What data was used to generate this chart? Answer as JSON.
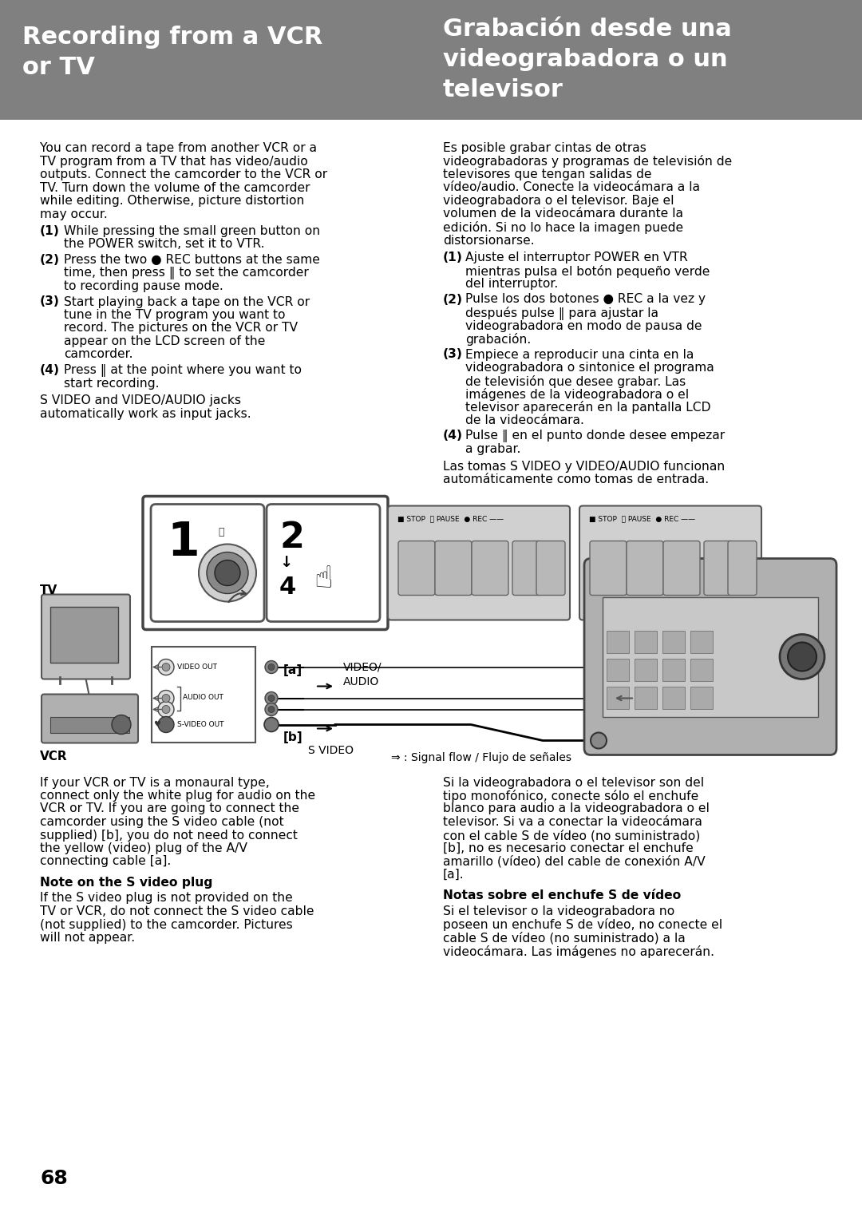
{
  "page_bg": "#ffffff",
  "header_bg": "#808080",
  "header_text_color": "#ffffff",
  "header_left_lines": [
    "Recording from a VCR",
    "or TV"
  ],
  "header_right_lines": [
    "Grabación desde una",
    "videograbadora o un",
    "televisor"
  ],
  "left_intro": "You can record a tape from another VCR or a TV program from a TV that has video/audio outputs.  Connect the camcorder to the VCR or TV.  Turn down the volume of the camcorder while editing.  Otherwise, picture distortion may occur.",
  "left_steps": [
    {
      "num": "(1)",
      "text": "While pressing the small green button on the POWER switch, set it to VTR."
    },
    {
      "num": "(2)",
      "text": "Press the two ● REC buttons at the same time, then press ⏸ to set the camcorder to recording pause mode."
    },
    {
      "num": "(3)",
      "text": "Start playing back a tape on the VCR or tune in the TV program you want to record.  The pictures on the VCR or TV appear on the LCD screen of the camcorder."
    },
    {
      "num": "(4)",
      "text": "Press ⏸ at the point where you want to start recording."
    }
  ],
  "left_footer_lines": [
    "S VIDEO and VIDEO/AUDIO jacks",
    "automatically work as input jacks."
  ],
  "right_intro": "Es posible grabar cintas de otras videograbadoras y programas de televisión de televisores que tengan salidas de vídeo/audio. Conecte la videocámara a la videograbadora o el televisor. Baje el volumen de la videocámara durante la edición. Si no lo hace la imagen puede distorsionarse.",
  "right_steps": [
    {
      "num": "(1)",
      "text": "Ajuste el interruptor POWER en VTR mientras pulsa el botón pequeño verde del interruptor."
    },
    {
      "num": "(2)",
      "text": "Pulse los dos botones ● REC a la vez y después pulse ⏸ para ajustar la videograbadora en modo de pausa de grabación."
    },
    {
      "num": "(3)",
      "text": "Empiece a reproducir una cinta en la videograbadora o sintonice el programa de televisión que desee grabar. Las imágenes de la videograbadora o el televisor aparecerán en la pantalla LCD de la videocámara."
    },
    {
      "num": "(4)",
      "text": "Pulse ⏸ en el punto donde desee empezar a grabar."
    }
  ],
  "right_footer_lines": [
    "Las tomas S VIDEO y VIDEO/AUDIO funcionan",
    "automáticamente como tomas de entrada."
  ],
  "bottom_left_para1": "If your VCR or TV is a monaural type, connect only the white plug for audio on the VCR or TV. If you are going to connect the camcorder using the S video cable (not supplied) [b], you do not need to connect the yellow (video) plug of the A/V connecting cable [a].",
  "bottom_left_bold": "Note on the S video plug",
  "bottom_left_para2": "If the S video plug is not provided on the TV or VCR, do not connect the S video cable (not supplied) to the camcorder.  Pictures will not appear.",
  "bottom_right_para1": "Si la videograbadora o el televisor son del tipo monofónico, conecte sólo el enchufe blanco para audio a la videograbadora o el televisor. Si va a conectar la videocámara con el cable S de vídeo (no suministrado) [b], no es necesario conectar el enchufe amarillo (vídeo) del cable de conexión A/V [a].",
  "bottom_right_bold": "Notas sobre el enchufe S de vídeo",
  "bottom_right_para2": "Si el televisor o la videograbadora no poseen un enchufe S de vídeo, no conecte el cable S de vídeo (no suministrado) a la videocámara. Las imágenes no aparecerán.",
  "page_number": "68",
  "diagram_tv_label": "TV",
  "diagram_vcr_label": "VCR",
  "diagram_video_out": "VIDEO OUT",
  "diagram_audio_out": "AUDIO OUT",
  "diagram_s_video_out": "S-VIDEO OUT",
  "diagram_a_label": "[a]",
  "diagram_b_label": "[b]",
  "diagram_video_audio": "VIDEO/\nAUDIO",
  "diagram_s_video": "S VIDEO",
  "diagram_signal_flow": "⇒ : Signal flow / Flujo de señales"
}
